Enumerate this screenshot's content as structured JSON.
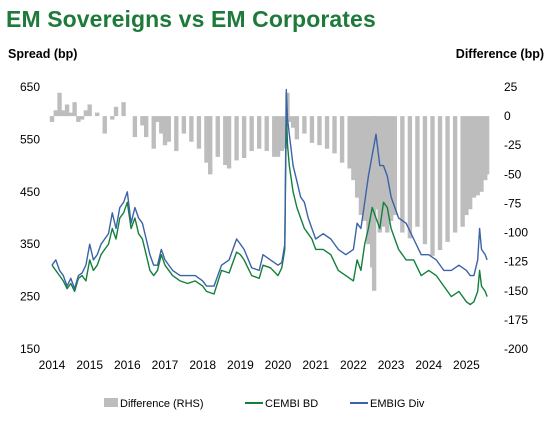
{
  "title": "EM Sovereigns vs EM Corporates",
  "colors": {
    "title": "#1e7a3a",
    "difference": "#bdbdbd",
    "cembi": "#12803c",
    "embig": "#3b63a6"
  },
  "chart_data": {
    "type": "line",
    "title": "EM Sovereigns vs EM Corporates",
    "ylabel": "Spread (bp)",
    "y2label": "Difference (bp)",
    "x_range": [
      2014,
      2025.6
    ],
    "xticks": [
      "2014",
      "2015",
      "2016",
      "2017",
      "2018",
      "2019",
      "2020",
      "2021",
      "2022",
      "2023",
      "2024",
      "2025"
    ],
    "ylim": [
      150,
      650
    ],
    "yticks": [
      "650",
      "550",
      "450",
      "350",
      "250",
      "150"
    ],
    "y2lim": [
      -200,
      25
    ],
    "y2ticks": [
      "25",
      "0",
      "-25",
      "-50",
      "-75",
      "-100",
      "-125",
      "-150",
      "-175",
      "-200"
    ],
    "grid": false,
    "legend_position": "bottom",
    "series": [
      {
        "name": "Difference (RHS)",
        "type": "area",
        "axis": "right",
        "x": [
          2014.0,
          2014.1,
          2014.2,
          2014.3,
          2014.4,
          2014.5,
          2014.6,
          2014.7,
          2014.8,
          2014.9,
          2015.0,
          2015.2,
          2015.4,
          2015.6,
          2015.7,
          2015.9,
          2016.0,
          2016.2,
          2016.4,
          2016.5,
          2016.7,
          2016.8,
          2016.9,
          2017.0,
          2017.1,
          2017.3,
          2017.5,
          2017.7,
          2017.9,
          2018.1,
          2018.2,
          2018.4,
          2018.6,
          2018.7,
          2018.9,
          2019.1,
          2019.3,
          2019.5,
          2019.7,
          2019.9,
          2020.0,
          2020.1,
          2020.2,
          2020.25,
          2020.3,
          2020.4,
          2020.5,
          2020.7,
          2020.9,
          2021.1,
          2021.3,
          2021.5,
          2021.7,
          2021.9,
          2022.0,
          2022.1,
          2022.2,
          2022.3,
          2022.4,
          2022.5,
          2022.55,
          2022.6,
          2022.7,
          2022.8,
          2022.9,
          2023.0,
          2023.1,
          2023.3,
          2023.5,
          2023.7,
          2023.9,
          2024.1,
          2024.3,
          2024.5,
          2024.7,
          2024.9,
          2025.0,
          2025.1,
          2025.2,
          2025.3,
          2025.4,
          2025.5,
          2025.55
        ],
        "values": [
          -5,
          5,
          20,
          5,
          10,
          3,
          12,
          -5,
          -3,
          5,
          10,
          3,
          -15,
          -3,
          8,
          12,
          0,
          -18,
          -8,
          -18,
          -28,
          -5,
          -15,
          -25,
          -22,
          -30,
          -15,
          -22,
          -28,
          -40,
          -50,
          -35,
          -42,
          -45,
          -38,
          -36,
          -30,
          -28,
          -30,
          -35,
          -35,
          -30,
          -28,
          20,
          -5,
          -10,
          -20,
          -15,
          -23,
          -25,
          -28,
          -32,
          -40,
          -45,
          -55,
          -70,
          -85,
          -90,
          -110,
          -130,
          -150,
          -80,
          -100,
          -95,
          -100,
          -90,
          -85,
          -100,
          -105,
          -95,
          -110,
          -120,
          -115,
          -108,
          -100,
          -95,
          -85,
          -80,
          -70,
          -68,
          -65,
          -55,
          -50
        ]
      },
      {
        "name": "CEMBI BD",
        "type": "line",
        "axis": "left",
        "x": [
          2014.0,
          2014.1,
          2014.2,
          2014.3,
          2014.4,
          2014.5,
          2014.6,
          2014.7,
          2014.8,
          2014.9,
          2015.0,
          2015.1,
          2015.2,
          2015.3,
          2015.4,
          2015.5,
          2015.6,
          2015.7,
          2015.8,
          2015.9,
          2016.0,
          2016.1,
          2016.2,
          2016.3,
          2016.4,
          2016.5,
          2016.6,
          2016.7,
          2016.8,
          2016.9,
          2017.0,
          2017.2,
          2017.4,
          2017.6,
          2017.8,
          2018.0,
          2018.1,
          2018.3,
          2018.5,
          2018.7,
          2018.9,
          2019.0,
          2019.1,
          2019.3,
          2019.5,
          2019.6,
          2019.8,
          2020.0,
          2020.1,
          2020.18,
          2020.22,
          2020.25,
          2020.3,
          2020.4,
          2020.5,
          2020.6,
          2020.7,
          2020.8,
          2020.9,
          2021.0,
          2021.2,
          2021.4,
          2021.6,
          2021.8,
          2022.0,
          2022.1,
          2022.2,
          2022.3,
          2022.4,
          2022.5,
          2022.6,
          2022.7,
          2022.8,
          2022.9,
          2023.0,
          2023.2,
          2023.4,
          2023.6,
          2023.8,
          2024.0,
          2024.2,
          2024.4,
          2024.6,
          2024.8,
          2025.0,
          2025.1,
          2025.2,
          2025.3,
          2025.35,
          2025.4,
          2025.5,
          2025.55
        ],
        "values": [
          310,
          300,
          290,
          280,
          265,
          275,
          260,
          285,
          290,
          280,
          320,
          300,
          310,
          330,
          340,
          350,
          380,
          360,
          400,
          410,
          430,
          380,
          400,
          370,
          360,
          330,
          300,
          290,
          300,
          330,
          310,
          290,
          280,
          275,
          280,
          270,
          260,
          255,
          300,
          295,
          335,
          330,
          320,
          290,
          285,
          310,
          305,
          290,
          305,
          340,
          600,
          540,
          500,
          450,
          420,
          400,
          380,
          370,
          360,
          340,
          340,
          330,
          300,
          290,
          280,
          320,
          300,
          350,
          380,
          420,
          400,
          380,
          430,
          420,
          380,
          340,
          320,
          320,
          290,
          300,
          290,
          270,
          250,
          260,
          240,
          235,
          240,
          260,
          300,
          270,
          260,
          250
        ]
      },
      {
        "name": "EMBIG Div",
        "type": "line",
        "axis": "left",
        "x": [
          2014.0,
          2014.1,
          2014.2,
          2014.3,
          2014.4,
          2014.5,
          2014.6,
          2014.7,
          2014.8,
          2014.9,
          2015.0,
          2015.1,
          2015.2,
          2015.3,
          2015.4,
          2015.5,
          2015.6,
          2015.7,
          2015.8,
          2015.9,
          2016.0,
          2016.1,
          2016.2,
          2016.3,
          2016.4,
          2016.5,
          2016.6,
          2016.7,
          2016.8,
          2016.9,
          2017.0,
          2017.2,
          2017.4,
          2017.6,
          2017.8,
          2018.0,
          2018.1,
          2018.3,
          2018.5,
          2018.7,
          2018.9,
          2019.0,
          2019.1,
          2019.3,
          2019.5,
          2019.6,
          2019.8,
          2020.0,
          2020.1,
          2020.18,
          2020.22,
          2020.25,
          2020.3,
          2020.4,
          2020.5,
          2020.6,
          2020.7,
          2020.8,
          2020.9,
          2021.0,
          2021.2,
          2021.4,
          2021.6,
          2021.8,
          2022.0,
          2022.1,
          2022.2,
          2022.3,
          2022.4,
          2022.5,
          2022.6,
          2022.7,
          2022.8,
          2022.9,
          2023.0,
          2023.2,
          2023.4,
          2023.6,
          2023.8,
          2024.0,
          2024.2,
          2024.4,
          2024.6,
          2024.8,
          2025.0,
          2025.1,
          2025.2,
          2025.3,
          2025.35,
          2025.4,
          2025.5,
          2025.55
        ],
        "values": [
          310,
          320,
          300,
          290,
          270,
          285,
          265,
          290,
          295,
          310,
          350,
          320,
          330,
          350,
          360,
          370,
          410,
          380,
          420,
          430,
          450,
          390,
          420,
          400,
          390,
          360,
          330,
          310,
          310,
          340,
          320,
          300,
          290,
          290,
          290,
          280,
          270,
          270,
          310,
          320,
          360,
          350,
          340,
          305,
          300,
          330,
          320,
          310,
          315,
          350,
          645,
          590,
          560,
          500,
          470,
          440,
          430,
          400,
          380,
          360,
          370,
          360,
          340,
          330,
          340,
          390,
          380,
          430,
          480,
          520,
          560,
          500,
          500,
          480,
          440,
          400,
          390,
          360,
          330,
          330,
          320,
          300,
          300,
          310,
          300,
          290,
          290,
          320,
          380,
          340,
          330,
          320
        ]
      }
    ]
  },
  "legend": [
    {
      "label": "Difference (RHS)",
      "kind": "area"
    },
    {
      "label": "CEMBI BD",
      "kind": "line"
    },
    {
      "label": "EMBIG Div",
      "kind": "line"
    }
  ]
}
